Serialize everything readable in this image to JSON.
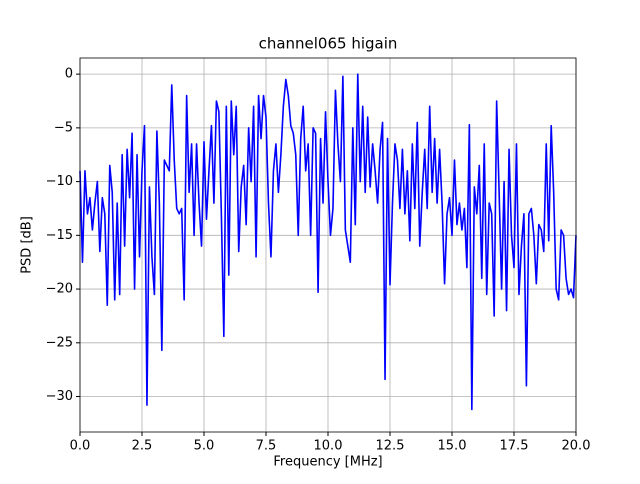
{
  "chart_data": {
    "type": "line",
    "title": "channel065 higain",
    "x_label": "Frequency [MHz]",
    "y_label": "PSD [dB]",
    "x": [
      0.0,
      0.1,
      0.2,
      0.3,
      0.4,
      0.5,
      0.6,
      0.7,
      0.8,
      0.9,
      1.0,
      1.1,
      1.2,
      1.3,
      1.4,
      1.5,
      1.6,
      1.7,
      1.8,
      1.9,
      2.0,
      2.1,
      2.2,
      2.3,
      2.4,
      2.5,
      2.6,
      2.7,
      2.8,
      2.9,
      3.0,
      3.1,
      3.2,
      3.3,
      3.4,
      3.5,
      3.6,
      3.7,
      3.8,
      3.9,
      4.0,
      4.1,
      4.2,
      4.3,
      4.4,
      4.5,
      4.6,
      4.7,
      4.8,
      4.9,
      5.0,
      5.1,
      5.2,
      5.3,
      5.4,
      5.5,
      5.6,
      5.7,
      5.8,
      5.9,
      6.0,
      6.1,
      6.2,
      6.3,
      6.4,
      6.5,
      6.6,
      6.7,
      6.8,
      6.9,
      7.0,
      7.1,
      7.2,
      7.3,
      7.4,
      7.5,
      7.6,
      7.7,
      7.8,
      7.9,
      8.0,
      8.1,
      8.2,
      8.3,
      8.4,
      8.5,
      8.6,
      8.7,
      8.8,
      8.9,
      9.0,
      9.1,
      9.2,
      9.3,
      9.4,
      9.5,
      9.6,
      9.7,
      9.8,
      9.9,
      10.0,
      10.1,
      10.2,
      10.3,
      10.4,
      10.5,
      10.6,
      10.7,
      10.8,
      10.9,
      11.0,
      11.1,
      11.2,
      11.3,
      11.4,
      11.5,
      11.6,
      11.7,
      11.8,
      11.9,
      12.0,
      12.1,
      12.2,
      12.3,
      12.4,
      12.5,
      12.6,
      12.7,
      12.8,
      12.9,
      13.0,
      13.1,
      13.2,
      13.3,
      13.4,
      13.5,
      13.6,
      13.7,
      13.8,
      13.9,
      14.0,
      14.1,
      14.2,
      14.3,
      14.4,
      14.5,
      14.6,
      14.7,
      14.8,
      14.9,
      15.0,
      15.1,
      15.2,
      15.3,
      15.4,
      15.5,
      15.6,
      15.7,
      15.8,
      15.9,
      16.0,
      16.1,
      16.2,
      16.3,
      16.4,
      16.5,
      16.6,
      16.7,
      16.8,
      16.9,
      17.0,
      17.1,
      17.2,
      17.3,
      17.4,
      17.5,
      17.6,
      17.7,
      17.8,
      17.9,
      18.0,
      18.1,
      18.2,
      18.3,
      18.4,
      18.5,
      18.6,
      18.7,
      18.8,
      18.9,
      19.0,
      19.1,
      19.2,
      19.3,
      19.4,
      19.5,
      19.6,
      19.7,
      19.8,
      19.9,
      20.0
    ],
    "series": [
      {
        "color": "#0000ff",
        "values": [
          -9,
          -17.5,
          -9,
          -13,
          -11.5,
          -14.5,
          -12,
          -10,
          -16.5,
          -11.5,
          -13,
          -21.5,
          -8.5,
          -11,
          -21,
          -12,
          -20.5,
          -7.5,
          -16,
          -7,
          -11.5,
          -5.5,
          -20,
          -7.5,
          -17,
          -9,
          -4.8,
          -30.8,
          -10.5,
          -17,
          -20.5,
          -5.3,
          -12,
          -25.7,
          -8,
          -8.5,
          -9,
          -1,
          -8,
          -12.5,
          -13,
          -12.5,
          -21,
          -2,
          -11,
          -6.5,
          -15,
          -6.5,
          -12,
          -16,
          -6.3,
          -13.5,
          -9,
          -4.8,
          -12,
          -2.5,
          -3.5,
          -13,
          -24.4,
          -3,
          -18.7,
          -2.5,
          -7.5,
          -3,
          -16.5,
          -10.5,
          -8.5,
          -14,
          -5,
          -10,
          -3,
          -17,
          -2,
          -6,
          -2,
          -4,
          -12,
          -17,
          -9,
          -6.5,
          -11,
          -7.5,
          -3,
          -0.5,
          -2,
          -4.8,
          -5.5,
          -7.5,
          -15,
          -6,
          -3,
          -9,
          -6.5,
          -15,
          -5,
          -5.5,
          -20.3,
          -6,
          -12,
          -3.5,
          -10,
          -15,
          -12.5,
          -1.5,
          -6.5,
          -10,
          -0.2,
          -14.5,
          -16,
          -17.5,
          -5,
          -14,
          0,
          -10,
          -3,
          -11,
          -4,
          -10.5,
          -6.5,
          -9,
          -12,
          -7,
          -4.5,
          -28.4,
          -6,
          -19.6,
          -12,
          -6.5,
          -8,
          -12.5,
          -7,
          -13,
          -9,
          -15.5,
          -6.5,
          -12.5,
          -4.5,
          -16,
          -11,
          -7,
          -12.5,
          -3,
          -11,
          -6,
          -12,
          -7,
          -12,
          -19.5,
          -13,
          -11.5,
          -15,
          -8,
          -14,
          -12,
          -14.5,
          -12.5,
          -18,
          -4.7,
          -31.2,
          -10.5,
          -13,
          -8.5,
          -19,
          -6.5,
          -20.5,
          -12,
          -13,
          -22.5,
          -2.5,
          -11,
          -20,
          -10,
          -22,
          -7,
          -15,
          -18,
          -6.5,
          -20.5,
          -16,
          -13,
          -29,
          -13,
          -12.5,
          -15,
          -19.5,
          -14,
          -14.5,
          -16.5,
          -6.5,
          -15.5,
          -4.8,
          -11,
          -20,
          -21,
          -14.5,
          -15,
          -19,
          -20.5,
          -20,
          -20.8,
          -15
        ]
      }
    ],
    "xlim": [
      0,
      20
    ],
    "ylim": [
      -33.3,
      1.5
    ],
    "xticks": [
      {
        "value": 0,
        "label": "0.0"
      },
      {
        "value": 2.5,
        "label": "2.5"
      },
      {
        "value": 5,
        "label": "5.0"
      },
      {
        "value": 7.5,
        "label": "7.5"
      },
      {
        "value": 10,
        "label": "10.0"
      },
      {
        "value": 12.5,
        "label": "12.5"
      },
      {
        "value": 15,
        "label": "15.0"
      },
      {
        "value": 17.5,
        "label": "17.5"
      },
      {
        "value": 20,
        "label": "20.0"
      }
    ],
    "yticks": [
      0,
      {
        "value": -5,
        "label": "−5"
      },
      {
        "value": -10,
        "label": "−10"
      },
      {
        "value": -15,
        "label": "−15"
      },
      {
        "value": -20,
        "label": "−20"
      },
      {
        "value": -25,
        "label": "−25"
      },
      {
        "value": -30,
        "label": "−30"
      }
    ],
    "grid": true
  }
}
